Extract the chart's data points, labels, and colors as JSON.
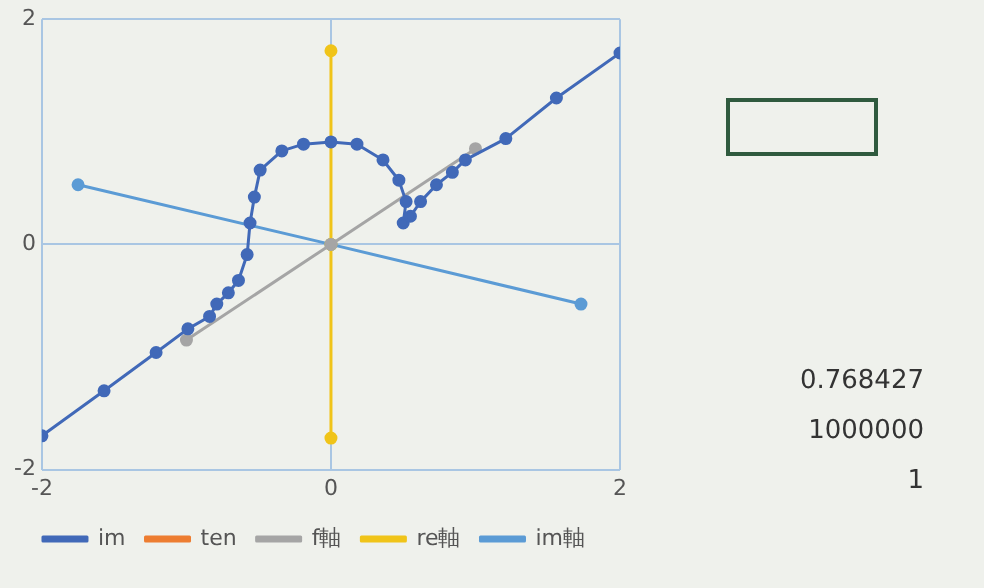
{
  "chart_data": {
    "type": "line",
    "marker": "circle",
    "line_style": "solid",
    "grid": true,
    "legend": "bottom",
    "xlim": [
      -2,
      2
    ],
    "ylim": [
      -2,
      2
    ],
    "xticks": [
      -2,
      0,
      2
    ],
    "yticks": [
      -2,
      0,
      2
    ],
    "series": [
      {
        "name": "im",
        "color": "#4169b8",
        "x": [
          -2,
          -1.57,
          -1.21,
          -0.99,
          -0.84,
          -0.79,
          -0.71,
          -0.64,
          -0.58,
          -0.56,
          -0.53,
          -0.49,
          -0.34,
          -0.19,
          0,
          0.18,
          0.36,
          0.47,
          0.52,
          0.5,
          0.55,
          0.62,
          0.73,
          0.84,
          0.93,
          1.21,
          1.56,
          2
        ],
        "values": [
          -1.7,
          -1.3,
          -0.96,
          -0.75,
          -0.64,
          -0.53,
          -0.43,
          -0.32,
          -0.09,
          0.19,
          0.42,
          0.66,
          0.83,
          0.89,
          0.91,
          0.89,
          0.75,
          0.57,
          0.38,
          0.19,
          0.25,
          0.38,
          0.53,
          0.64,
          0.75,
          0.94,
          1.3,
          1.7
        ]
      },
      {
        "name": "ten",
        "color": "#ed7d31",
        "type": "line"
      },
      {
        "name": "f軸",
        "color": "#a5a5a5",
        "x": [
          -1,
          0,
          1
        ],
        "values": [
          -0.85,
          0,
          0.85
        ]
      },
      {
        "name": "re軸",
        "color": "#f0c419",
        "x": [
          0,
          0,
          0
        ],
        "values": [
          1.72,
          0,
          -1.72
        ]
      },
      {
        "name": "im軸",
        "color": "#5b9bd5",
        "x": [
          -1.75,
          0,
          1.73
        ],
        "values": [
          0.53,
          0,
          -0.53
        ]
      }
    ],
    "annotations": [
      "0.768427",
      "1000000",
      "1"
    ]
  }
}
